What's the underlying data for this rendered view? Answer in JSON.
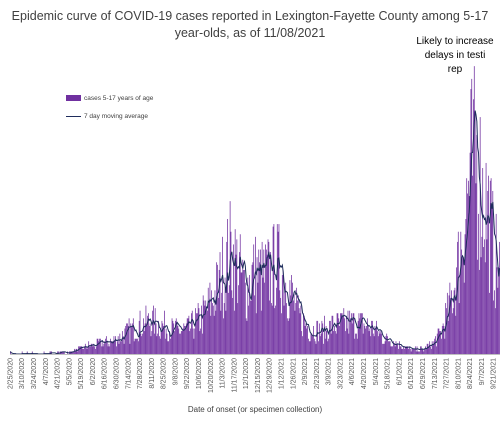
{
  "chart_data": {
    "type": "bar",
    "title_line1": "Epidemic curve of COVID-19 cases reported in Lexington-Fayette County among 5-17",
    "title_line2": "year-olds, as of 11/08/2021",
    "annotation_lines": [
      "Likely to increase",
      "delays in testi",
      "rep"
    ],
    "xlabel": "Date of onset (or specimen collection)",
    "ylabel": "",
    "grid": false,
    "legend_position": "upper-left",
    "series": [
      {
        "name": "cases 5-17 years of age",
        "type": "bar",
        "color": "#7030a0"
      },
      {
        "name": "7 day moving average",
        "type": "line",
        "color": "#1f2d5c"
      }
    ],
    "tick_labels": [
      "2/25/2020",
      "3/10/2020",
      "3/24/2020",
      "4/7/2020",
      "4/21/2020",
      "5/5/2020",
      "5/19/2020",
      "6/2/2020",
      "6/16/2020",
      "6/30/2020",
      "7/14/2020",
      "7/28/2020",
      "8/11/2020",
      "8/25/2020",
      "9/8/2020",
      "9/22/2020",
      "10/6/2020",
      "10/20/2020",
      "11/3/2020",
      "11/17/2020",
      "12/1/2020",
      "12/15/2020",
      "12/29/2020",
      "1/12/2021",
      "1/26/2021",
      "2/9/2021",
      "2/23/2021",
      "3/9/2021",
      "3/23/2021",
      "4/6/2021",
      "4/20/2021",
      "5/4/2021",
      "5/18/2021",
      "6/1/2021",
      "6/15/2021",
      "6/29/2021",
      "7/13/2021",
      "7/27/2021",
      "8/10/2021",
      "8/24/2021",
      "9/7/2021",
      "9/21/2021"
    ],
    "visible_range": {
      "start": "2020-02-25",
      "end": "2021-09-28"
    },
    "anchors": [
      [
        "2020-02-25",
        0
      ],
      [
        "2020-03-10",
        0.2
      ],
      [
        "2020-04-05",
        0.3
      ],
      [
        "2020-04-25",
        0.4
      ],
      [
        "2020-05-08",
        1
      ],
      [
        "2020-05-25",
        3
      ],
      [
        "2020-06-10",
        4
      ],
      [
        "2020-06-25",
        5
      ],
      [
        "2020-07-10",
        8
      ],
      [
        "2020-07-25",
        11
      ],
      [
        "2020-08-10",
        13
      ],
      [
        "2020-08-25",
        11
      ],
      [
        "2020-09-10",
        9
      ],
      [
        "2020-09-25",
        10
      ],
      [
        "2020-10-10",
        15
      ],
      [
        "2020-10-25",
        23
      ],
      [
        "2020-11-05",
        33
      ],
      [
        "2020-11-12",
        40
      ],
      [
        "2020-11-20",
        35
      ],
      [
        "2020-11-30",
        25
      ],
      [
        "2020-12-10",
        32
      ],
      [
        "2020-12-20",
        30
      ],
      [
        "2020-12-30",
        32
      ],
      [
        "2021-01-05",
        35
      ],
      [
        "2021-01-12",
        33
      ],
      [
        "2021-01-22",
        25
      ],
      [
        "2021-02-01",
        15
      ],
      [
        "2021-02-15",
        10
      ],
      [
        "2021-03-01",
        9
      ],
      [
        "2021-03-15",
        11
      ],
      [
        "2021-03-30",
        12
      ],
      [
        "2021-04-15",
        12
      ],
      [
        "2021-05-01",
        10
      ],
      [
        "2021-05-15",
        6
      ],
      [
        "2021-06-01",
        4
      ],
      [
        "2021-06-15",
        1.5
      ],
      [
        "2021-06-30",
        2
      ],
      [
        "2021-07-10",
        4
      ],
      [
        "2021-07-20",
        8
      ],
      [
        "2021-08-01",
        20
      ],
      [
        "2021-08-10",
        35
      ],
      [
        "2021-08-18",
        55
      ],
      [
        "2021-08-25",
        72
      ],
      [
        "2021-09-01",
        75
      ],
      [
        "2021-09-08",
        62
      ],
      [
        "2021-09-15",
        55
      ],
      [
        "2021-09-22",
        38
      ],
      [
        "2021-09-28",
        32
      ]
    ],
    "peak": {
      "date": "2021-08-30",
      "value": 95
    }
  }
}
